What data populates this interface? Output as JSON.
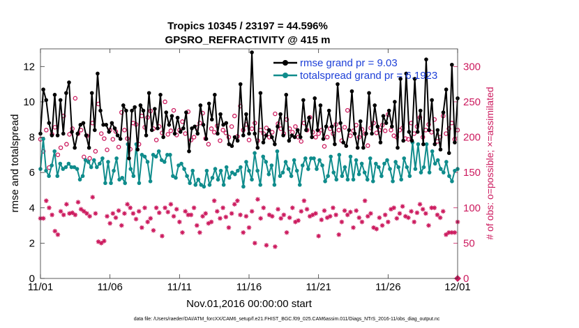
{
  "chart_data": {
    "type": "line",
    "title_line1": "Tropics 10345 / 23197 = 44.596%",
    "title_line2": "GPSRO_REFRACTIVITY @ 415 m",
    "xlabel": "Nov.01,2016 00:00:00 start",
    "ylabel_left": "rmse and totalspread",
    "ylabel_right": "# of obs: o=possible; ×=assimilated",
    "footer": "data file: /Users/raeder/DAI/ATM_forcXX/CAM6_setup/f.e21.FHIST_BGC.f09_025.CAM6assim.011/Diags_NTrS_2016-11/obs_diag_output.nc",
    "x_ticks": [
      "11/01",
      "11/06",
      "11/11",
      "11/16",
      "11/21",
      "11/26",
      "12/01"
    ],
    "x_range_days": [
      0,
      30
    ],
    "y_left_ticks": [
      "0",
      "2",
      "4",
      "6",
      "8",
      "10",
      "12"
    ],
    "y_left_range": [
      0,
      13
    ],
    "y_right_ticks": [
      "0",
      "50",
      "100",
      "150",
      "200",
      "250",
      "300"
    ],
    "y_right_range": [
      0,
      325
    ],
    "legend": {
      "rmse_label": "rmse grand pr = 9.03",
      "spread_label": "totalspread grand pr = 6.1923",
      "placement": "top-right"
    },
    "colors": {
      "rmse": "#000000",
      "spread": "#0f8c8c",
      "obs": "#cc1a5e",
      "legend_text": "#1e40d8"
    },
    "series": [
      {
        "name": "rmse",
        "axis": "left",
        "values": [
          8.2,
          10.7,
          10.1,
          8.8,
          8.1,
          10.4,
          8.1,
          10.1,
          8.2,
          10.5,
          11.1,
          8.3,
          7.4,
          8.2,
          8.7,
          8.8,
          8.1,
          7.4,
          10.5,
          8.4,
          11.6,
          9.5,
          8.7,
          8.7,
          8.3,
          8.8,
          8.5,
          8.1,
          7.9,
          9.8,
          9.5,
          6.8,
          9.5,
          9.7,
          7.3,
          9.8,
          9.5,
          8.1,
          10.5,
          8.4,
          9.6,
          8.5,
          10.4,
          8.0,
          9.4,
          8.7,
          9.2,
          8.2,
          9.1,
          8.3,
          8.5,
          9.4,
          7.2,
          8.5,
          8.6,
          8.2,
          9.8,
          8.7,
          7.9,
          9.9,
          9.0,
          10.4,
          8.2,
          9.3,
          8.7,
          8.8,
          7.6,
          7.5,
          8.0,
          7.8,
          11.0,
          8.1,
          9.3,
          8.2,
          12.8,
          8.2,
          7.4,
          10.5,
          7.7,
          8.1,
          8.4,
          8.0,
          7.6,
          8.6,
          9.3,
          8.1,
          10.4,
          7.8,
          8.1,
          8.0,
          8.4,
          8.0,
          10.1,
          8.4,
          9.1,
          8.0,
          10.2,
          8.4,
          9.8,
          7.9,
          8.6,
          9.5,
          8.6,
          7.6,
          11.0,
          8.8,
          7.7,
          7.5,
          8.4,
          10.6,
          8.2,
          7.4,
          8.9,
          7.4,
          8.2,
          10.5,
          8.2,
          9.8,
          8.6,
          7.7,
          9.2,
          8.8,
          9.5,
          8.6,
          10.0,
          7.4,
          11.3,
          7.8,
          11.6,
          8.3,
          7.8,
          11.3,
          8.3,
          9.5,
          7.6,
          12.4,
          8.4,
          10.1,
          7.6,
          8.4,
          7.3,
          9.4,
          10.7,
          7.1,
          12.1,
          7.7,
          10.2
        ]
      },
      {
        "name": "totalspread",
        "axis": "left",
        "values": [
          6.2,
          7.9,
          6.1,
          5.8,
          6.4,
          7.2,
          5.8,
          6.5,
          6.2,
          6.3,
          6.5,
          6.3,
          6.3,
          6.2,
          5.6,
          5.8,
          6.7,
          6.6,
          6.3,
          6.7,
          6.3,
          6.5,
          6.8,
          5.4,
          6.6,
          5.4,
          6.1,
          6.8,
          5.6,
          5.7,
          5.4,
          7.6,
          6.2,
          5.8,
          7.6,
          5.4,
          7.0,
          6.9,
          6.6,
          5.5,
          7.0,
          6.9,
          7.2,
          6.7,
          6.6,
          7.0,
          7.0,
          5.8,
          5.7,
          6.4,
          6.5,
          6.2,
          5.8,
          5.4,
          6.1,
          5.3,
          5.6,
          5.3,
          5.2,
          6.1,
          5.3,
          5.7,
          6.2,
          5.6,
          6.1,
          5.3,
          6.3,
          5.7,
          6.0,
          5.9,
          6.1,
          6.3,
          5.2,
          6.6,
          6.1,
          5.6,
          7.1,
          6.1,
          5.3,
          6.9,
          6.6,
          5.9,
          6.4,
          5.3,
          7.2,
          5.8,
          6.0,
          6.6,
          6.2,
          5.8,
          6.7,
          6.1,
          5.3,
          6.4,
          6.8,
          6.2,
          6.8,
          6.8,
          6.2,
          6.7,
          6.4,
          5.5,
          5.8,
          6.9,
          6.0,
          5.6,
          7.0,
          5.8,
          6.3,
          5.6,
          6.9,
          5.6,
          6.7,
          5.9,
          6.5,
          6.0,
          5.6,
          6.8,
          5.5,
          6.5,
          6.3,
          5.8,
          6.5,
          6.7,
          6.2,
          5.5,
          6.6,
          6.3,
          5.6,
          6.8,
          6.3,
          5.8,
          7.7,
          6.2,
          7.6,
          6.0,
          6.3,
          7.6,
          6.0,
          7.2,
          6.5,
          6.7,
          6.2,
          6.0,
          6.6,
          5.8,
          5.5,
          6.1,
          6.2
        ]
      },
      {
        "name": "possible",
        "axis": "right",
        "values": [
          197,
          180,
          210,
          157,
          204,
          214,
          175,
          185,
          230,
          190,
          204,
          212,
          255,
          205,
          210,
          172,
          202,
          170,
          220,
          180,
          247,
          205,
          198,
          182,
          210,
          197,
          208,
          186,
          235,
          210,
          198,
          183,
          220,
          218,
          190,
          230,
          214,
          228,
          237,
          212,
          196,
          215,
          206,
          250,
          204,
          209,
          238,
          203,
          210,
          222,
          205,
          236,
          196,
          200,
          214,
          220,
          234,
          198,
          190,
          212,
          207,
          216,
          195,
          210,
          206,
          200,
          215,
          230,
          201,
          244,
          210,
          218,
          196,
          212,
          220,
          195,
          210,
          205,
          213,
          200,
          207,
          233,
          219,
          212,
          205,
          225,
          212,
          207,
          215,
          200,
          194,
          220,
          210,
          228,
          207,
          200,
          205,
          210,
          187,
          200,
          212,
          205,
          218,
          210,
          195,
          214,
          238,
          202,
          209,
          217,
          200,
          211,
          205,
          188,
          213,
          220,
          206,
          210,
          217,
          209,
          232,
          210,
          202,
          200,
          210,
          213,
          198,
          197,
          220,
          205,
          215,
          228,
          200,
          210,
          218,
          207,
          225,
          194,
          200,
          230,
          205,
          212,
          220,
          197,
          210
        ]
      },
      {
        "name": "assimilated",
        "axis": "right",
        "values": [
          85,
          85,
          110,
          100,
          90,
          67,
          62,
          95,
          90,
          105,
          92,
          93,
          90,
          108,
          98,
          95,
          92,
          88,
          115,
          92,
          52,
          50,
          53,
          88,
          78,
          92,
          86,
          96,
          75,
          92,
          105,
          100,
          92,
          84,
          95,
          72,
          100,
          80,
          85,
          68,
          100,
          93,
          60,
          100,
          94,
          105,
          88,
          98,
          80,
          65,
          95,
          90,
          90,
          100,
          75,
          65,
          88,
          92,
          78,
          80,
          110,
          95,
          85,
          100,
          87,
          72,
          92,
          105,
          110,
          90,
          65,
          88,
          72,
          95,
          50,
          112,
          85,
          100,
          47,
          90,
          88,
          45,
          98,
          85,
          90,
          65,
          86,
          100,
          80,
          82,
          95,
          110,
          98,
          88,
          90,
          92,
          60,
          83,
          96,
          86,
          88,
          100,
          90,
          62,
          80,
          96,
          90,
          94,
          72,
          96,
          86,
          80,
          110,
          88,
          92,
          72,
          70,
          86,
          75,
          90,
          80,
          98,
          100,
          85,
          92,
          102,
          88,
          86,
          95,
          80,
          93,
          105,
          98,
          92,
          75,
          100,
          100,
          90,
          86,
          95,
          62,
          65,
          65,
          65,
          80
        ]
      }
    ]
  }
}
